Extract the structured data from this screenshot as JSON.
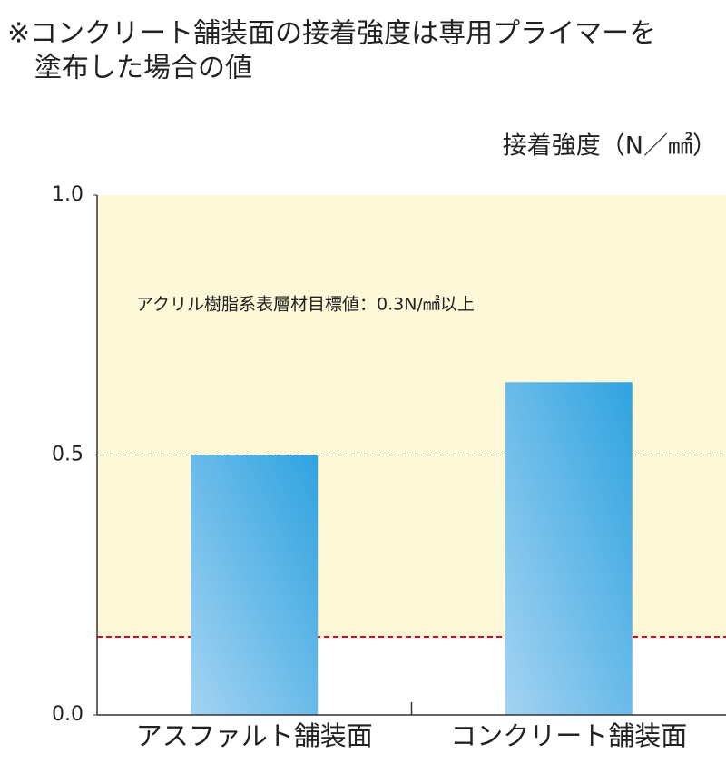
{
  "chart_data": {
    "type": "bar",
    "title": [
      "※コンクリート舗装面の接着強度は専用プライマーを",
      "塗布した場合の値"
    ],
    "y_axis_label": "接着強度（N／㎟）",
    "annotation": "アクリル樹脂系表層材目標値：0.3N/㎟以上",
    "categories": [
      "アスファルト舗装面",
      "コンクリート舗装面"
    ],
    "values": [
      0.5,
      0.64
    ],
    "color": "#4aa8e2",
    "ylim": [
      0,
      1.0
    ],
    "yticks": [
      {
        "value": 0,
        "label": "0.0"
      },
      {
        "value": 0.5,
        "label": "0.5"
      },
      {
        "value": 1.0,
        "label": "1.0"
      }
    ],
    "grid": true,
    "target_range": [
      0.15,
      1.0
    ],
    "target_color": "#fdf9d8",
    "target_line_color": "#e60012"
  }
}
